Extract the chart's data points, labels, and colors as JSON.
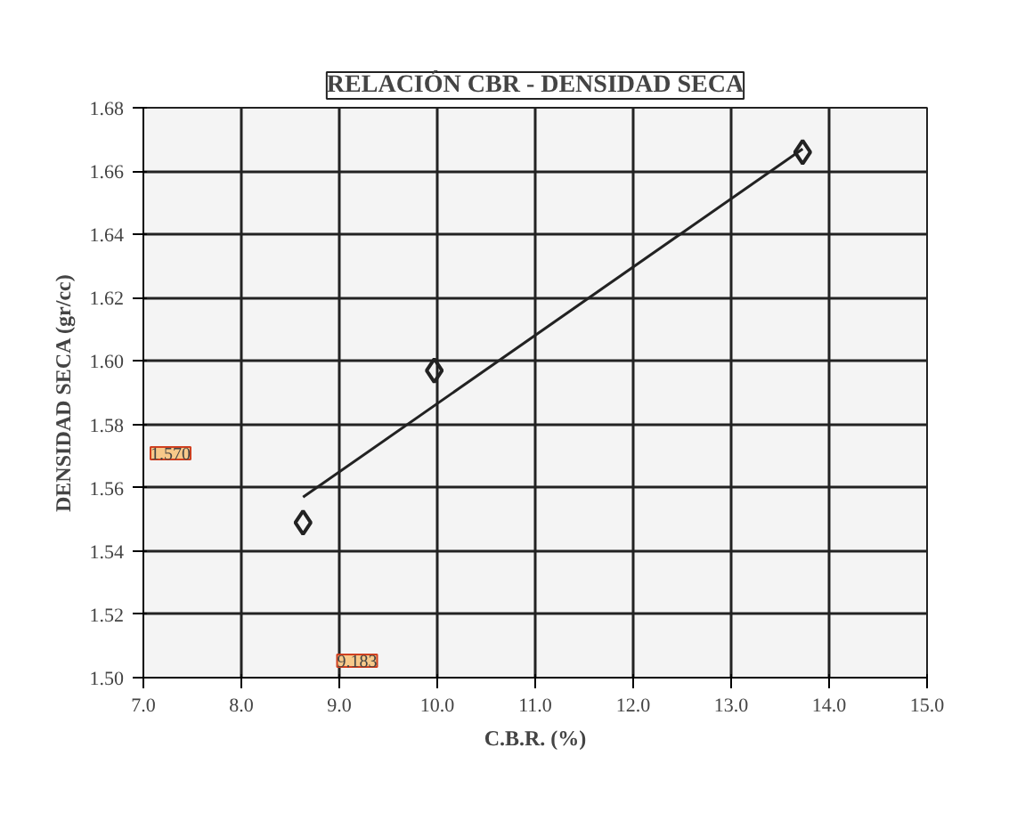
{
  "chart_data": {
    "type": "scatter",
    "title": "RELACIÓN CBR - DENSIDAD SECA",
    "xlabel": "C.B.R. (%)",
    "ylabel": "DENSIDAD SECA (gr/cc)",
    "xlim": [
      7.0,
      15.0
    ],
    "ylim": [
      1.5,
      1.68
    ],
    "xticks": [
      {
        "value": 7,
        "label": "7.0"
      },
      {
        "value": 8,
        "label": "8.0"
      },
      {
        "value": 9,
        "label": "9.0"
      },
      {
        "value": 10,
        "label": "10.0"
      },
      {
        "value": 11,
        "label": "11.0"
      },
      {
        "value": 12,
        "label": "12.0"
      },
      {
        "value": 13,
        "label": "13.0"
      },
      {
        "value": 14,
        "label": "14.0"
      },
      {
        "value": 15,
        "label": "15.0"
      }
    ],
    "yticks": [
      {
        "value": 1.5,
        "label": "1.50"
      },
      {
        "value": 1.52,
        "label": "1.52"
      },
      {
        "value": 1.54,
        "label": "1.54"
      },
      {
        "value": 1.56,
        "label": "1.56"
      },
      {
        "value": 1.58,
        "label": "1.58"
      },
      {
        "value": 1.6,
        "label": "1.60"
      },
      {
        "value": 1.62,
        "label": "1.62"
      },
      {
        "value": 1.64,
        "label": "1.64"
      },
      {
        "value": 1.66,
        "label": "1.66"
      },
      {
        "value": 1.68,
        "label": "1.68"
      }
    ],
    "grid": true,
    "marker": "diamond",
    "series": [
      {
        "color": "#222222",
        "x": [
          8.63,
          9.97,
          13.73
        ],
        "values": [
          1.549,
          1.597,
          1.666
        ]
      },
      {
        "type": "line",
        "color": "#222222",
        "marker": "none",
        "x": [
          8.63,
          13.73
        ],
        "values": [
          1.557,
          1.667
        ]
      }
    ],
    "annotations": [
      "1.570",
      "9.183"
    ]
  }
}
